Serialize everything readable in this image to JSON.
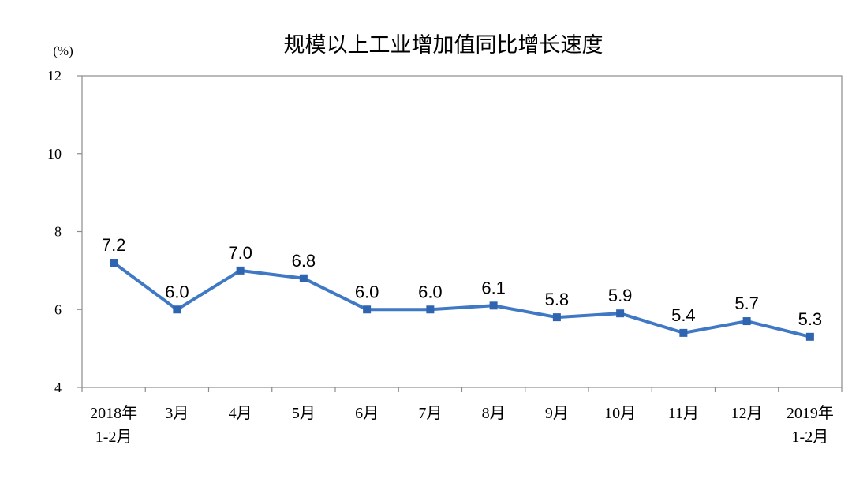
{
  "chart_data": {
    "type": "line",
    "title": "规模以上工业增加值同比增长速度",
    "ylabel": "(%)",
    "xlabel": "",
    "ylim": [
      4,
      12
    ],
    "yticks": [
      4,
      6,
      8,
      10,
      12
    ],
    "grid": false,
    "legend": "none",
    "categories": [
      [
        "2018年",
        "1-2月"
      ],
      [
        "3月"
      ],
      [
        "4月"
      ],
      [
        "5月"
      ],
      [
        "6月"
      ],
      [
        "7月"
      ],
      [
        "8月"
      ],
      [
        "9月"
      ],
      [
        "10月"
      ],
      [
        "11月"
      ],
      [
        "12月"
      ],
      [
        "2019年",
        "1-2月"
      ]
    ],
    "series": [
      {
        "values": [
          7.2,
          6.0,
          7.0,
          6.8,
          6.0,
          6.0,
          6.1,
          5.8,
          5.9,
          5.4,
          5.7,
          5.3
        ],
        "labels": [
          "7.2",
          "6.0",
          "7.0",
          "6.8",
          "6.0",
          "6.0",
          "6.1",
          "5.8",
          "5.9",
          "5.4",
          "5.7",
          "5.3"
        ]
      }
    ],
    "colors": {
      "line": "#3F78C4",
      "marker": "#2F65B0",
      "axis": "#8C8C8C"
    }
  }
}
